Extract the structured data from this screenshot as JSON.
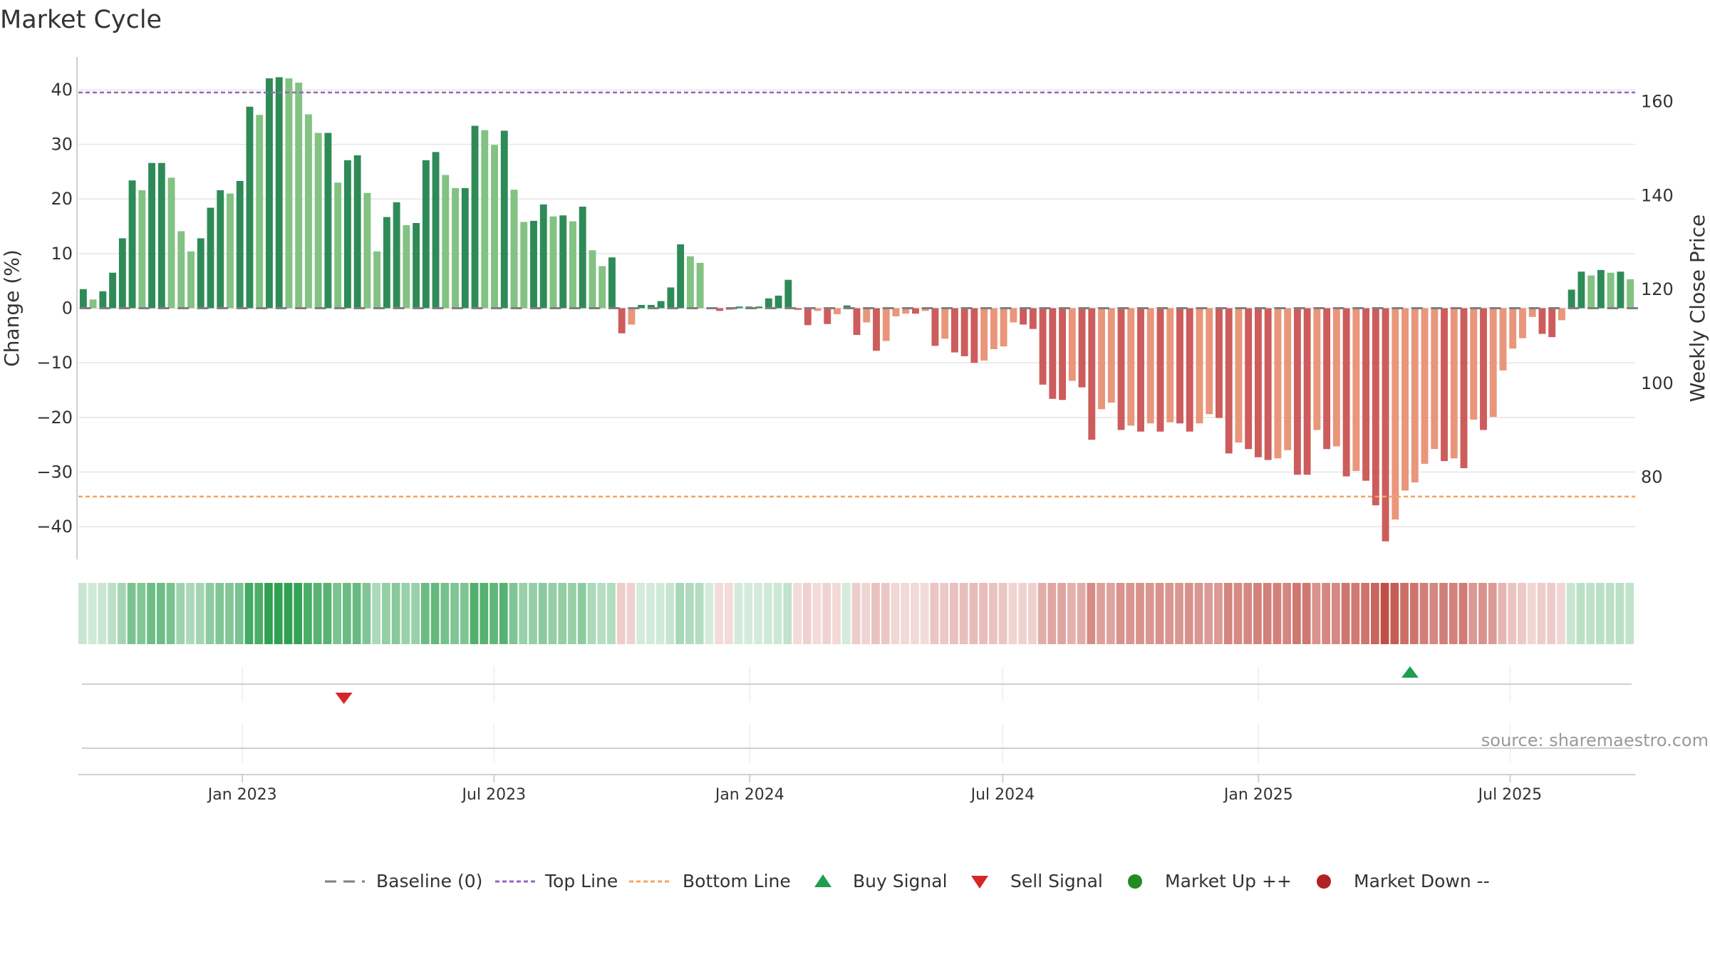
{
  "title": "Market Cycle",
  "source": "source: sharemaestro.com",
  "colors": {
    "up_dark": "#2e8b57",
    "up_light": "#82c282",
    "down_dark": "#cd5c5c",
    "down_light": "#e9967a",
    "top_line": "#9467bd",
    "bottom_line": "#f4a460",
    "baseline": "#7f7f7f",
    "buy": "#1e9e50",
    "sell": "#d62728",
    "market_up": "#228b22",
    "market_down": "#b22222",
    "grid": "#e6e6e6",
    "axis": "#cfcfcf"
  },
  "chart_data": {
    "type": "bar",
    "title": "Market Cycle",
    "ylabel": "Change (%)",
    "y2label": "Weekly Close Price",
    "ylim": [
      -46,
      46
    ],
    "y2lim": [
      62.5,
      169.5
    ],
    "yticks": [
      40,
      30,
      20,
      10,
      0,
      -10,
      -20,
      -30,
      -40
    ],
    "y2ticks": [
      160,
      140,
      120,
      100,
      80
    ],
    "x_start": "2022-09-05",
    "x_end": "2025-09-29",
    "xticks": [
      {
        "label": "Jan 2023",
        "date": "2023-01-01"
      },
      {
        "label": "Jul 2023",
        "date": "2023-07-01"
      },
      {
        "label": "Jan 2024",
        "date": "2024-01-01"
      },
      {
        "label": "Jul 2024",
        "date": "2024-07-01"
      },
      {
        "label": "Jan 2025",
        "date": "2025-01-01"
      },
      {
        "label": "Jul 2025",
        "date": "2025-07-01"
      }
    ],
    "top_line": 39.5,
    "bottom_line": -34.5,
    "baseline": 0,
    "values": [
      3.5,
      1.6,
      3.1,
      6.5,
      12.8,
      23.4,
      21.6,
      26.6,
      26.6,
      23.9,
      14.1,
      10.4,
      12.8,
      18.4,
      21.6,
      21.0,
      23.3,
      36.9,
      35.4,
      42.1,
      42.3,
      42.1,
      41.3,
      35.5,
      32.1,
      32.1,
      23.0,
      27.1,
      28.0,
      21.1,
      10.4,
      16.7,
      19.4,
      15.2,
      15.6,
      27.1,
      28.6,
      24.4,
      22.0,
      22.0,
      33.4,
      32.6,
      29.9,
      32.5,
      21.7,
      15.8,
      16.0,
      19.0,
      16.8,
      17.0,
      15.9,
      18.6,
      10.6,
      7.7,
      9.3,
      -4.6,
      -3.0,
      0.6,
      0.6,
      1.3,
      3.8,
      11.7,
      9.5,
      8.3,
      0,
      -0.5,
      -0.3,
      0.3,
      0.3,
      0.3,
      1.8,
      2.3,
      5.2,
      -0.3,
      -3.1,
      -0.5,
      -2.9,
      -1.1,
      0.5,
      -4.9,
      -2.6,
      -7.8,
      -6.0,
      -1.5,
      -1.0,
      -1.0,
      -0.5,
      -6.9,
      -5.6,
      -8.1,
      -8.8,
      -10.0,
      -9.6,
      -7.5,
      -7.0,
      -2.6,
      -3.0,
      -3.8,
      -14.0,
      -16.6,
      -16.8,
      -13.3,
      -14.5,
      -24.1,
      -18.5,
      -17.3,
      -22.3,
      -21.5,
      -22.6,
      -21.1,
      -22.6,
      -20.9,
      -21.1,
      -22.6,
      -21.1,
      -19.4,
      -20.1,
      -26.6,
      -24.6,
      -25.8,
      -27.3,
      -27.8,
      -27.5,
      -26.0,
      -30.5,
      -30.5,
      -22.3,
      -25.8,
      -25.3,
      -30.8,
      -29.8,
      -31.6,
      -36.1,
      -42.7,
      -38.7,
      -33.4,
      -31.9,
      -28.5,
      -25.8,
      -28.0,
      -27.5,
      -29.3,
      -20.4,
      -22.3,
      -19.9,
      -11.4,
      -7.4,
      -5.5,
      -1.6,
      -4.7,
      -5.3,
      -2.2,
      3.4,
      6.7,
      6.0,
      7.0,
      6.5,
      6.7,
      5.3
    ],
    "signals": [
      {
        "type": "sell",
        "date": "2023-03-15"
      },
      {
        "type": "buy",
        "date": "2025-04-20"
      }
    ],
    "legend": [
      "Baseline (0)",
      "Top Line",
      "Bottom Line",
      "Buy Signal",
      "Sell Signal",
      "Market Up ++",
      "Market Down --"
    ]
  }
}
